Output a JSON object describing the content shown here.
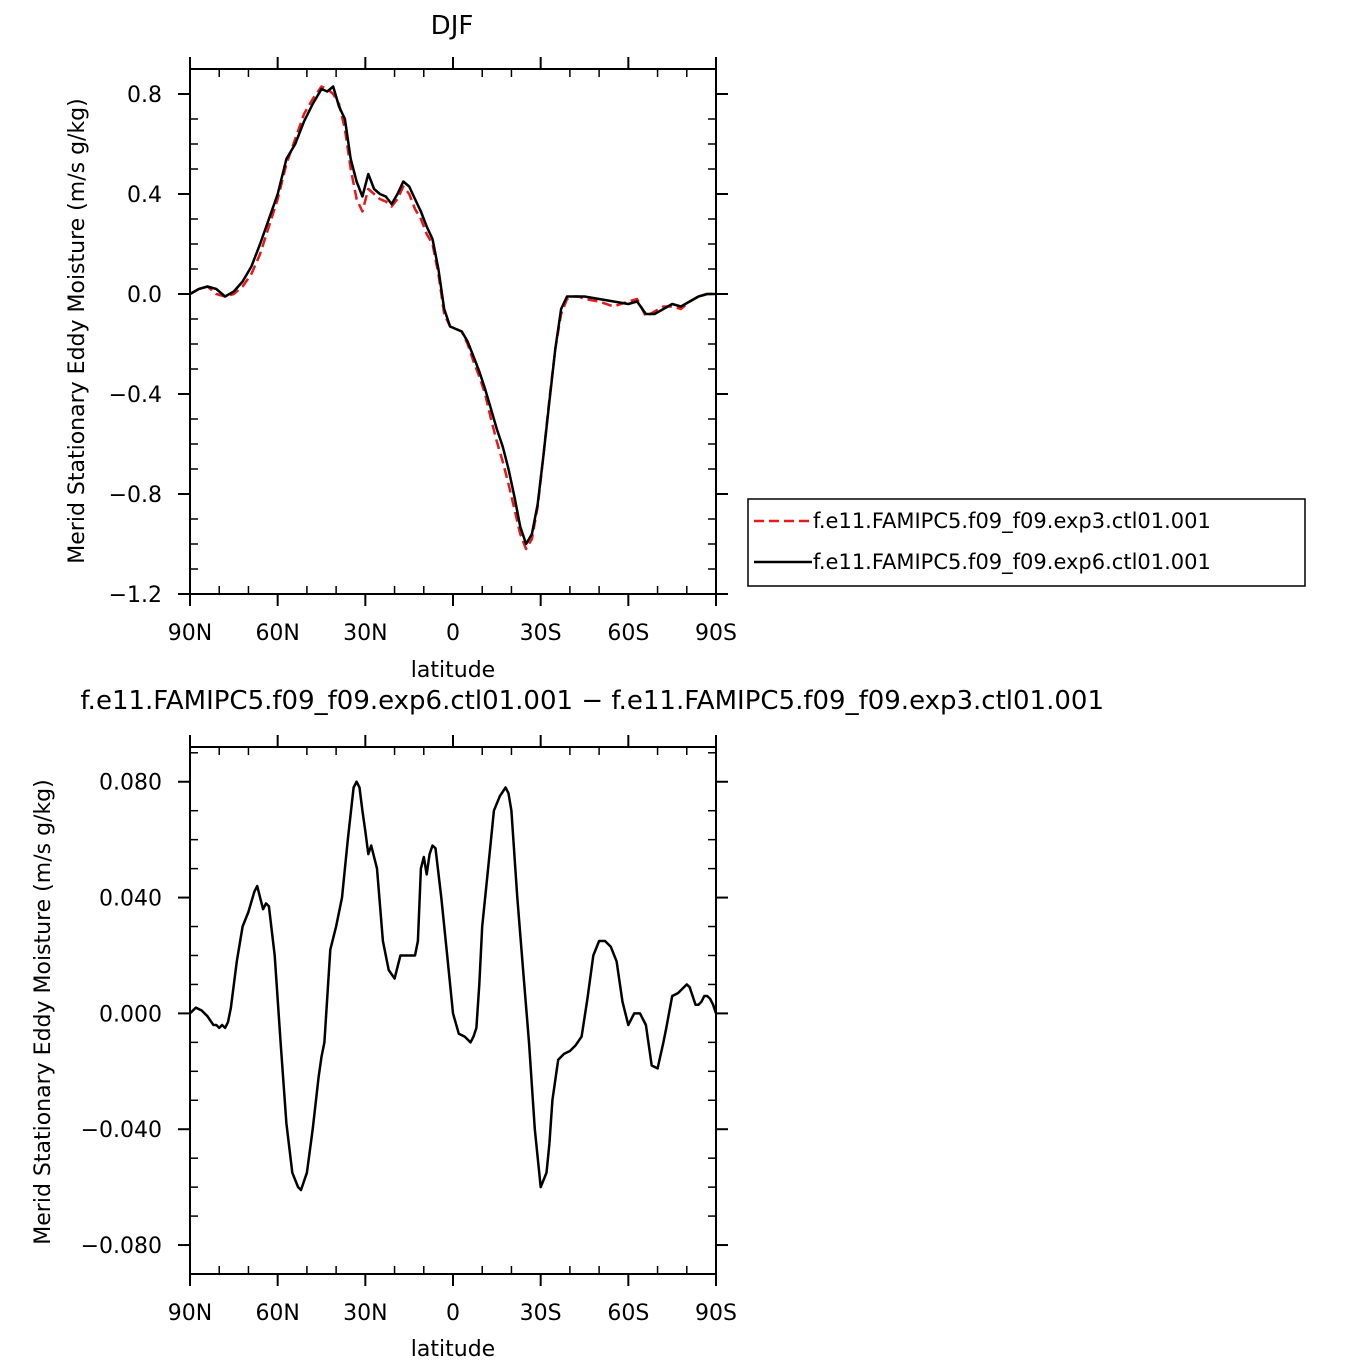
{
  "colors": {
    "exp3": "#e41a1c",
    "exp6": "#000000"
  },
  "chart_data": [
    {
      "type": "line",
      "title": "DJF",
      "xlabel": "latitude",
      "ylabel": "Merid Stationary Eddy Moisture (m/s g/kg)",
      "xlim": [
        -90,
        90
      ],
      "ylim": [
        -1.2,
        0.9
      ],
      "xticks": [
        -90,
        -60,
        -30,
        0,
        30,
        60,
        90
      ],
      "xtick_labels": [
        "90N",
        "60N",
        "30N",
        "0",
        "30S",
        "60S",
        "90S"
      ],
      "yticks": [
        -1.2,
        -0.8,
        -0.4,
        0.0,
        0.4,
        0.8
      ],
      "ytick_labels": [
        "−1.2",
        "−0.8",
        "−0.4",
        "0.0",
        "0.4",
        "0.8"
      ],
      "legend_position": "right",
      "series": [
        {
          "name": "f.e11.FAMIPC5.f09_f09.exp3.ctl01.001",
          "style": "dashed",
          "color": "#e41a1c",
          "x": [
            -90,
            -87,
            -84,
            -81,
            -78,
            -75,
            -72,
            -69,
            -66,
            -63,
            -60,
            -57,
            -54,
            -51,
            -48,
            -45,
            -43,
            -41,
            -39,
            -37,
            -35,
            -33,
            -31,
            -29,
            -27,
            -25,
            -23,
            -21,
            -19,
            -17,
            -15,
            -13,
            -11,
            -9,
            -7,
            -5,
            -3,
            -1,
            1,
            3,
            5,
            7,
            9,
            11,
            13,
            15,
            17,
            19,
            21,
            23,
            25,
            27,
            29,
            31,
            33,
            35,
            37,
            39,
            41,
            43,
            45,
            50,
            55,
            60,
            63,
            66,
            69,
            72,
            75,
            78,
            81,
            84,
            87,
            90
          ],
          "y": [
            0.0,
            0.02,
            0.03,
            0.0,
            -0.01,
            0.0,
            0.03,
            0.08,
            0.16,
            0.27,
            0.38,
            0.52,
            0.62,
            0.72,
            0.78,
            0.83,
            0.82,
            0.8,
            0.76,
            0.66,
            0.5,
            0.38,
            0.33,
            0.42,
            0.4,
            0.38,
            0.37,
            0.35,
            0.38,
            0.43,
            0.4,
            0.34,
            0.3,
            0.24,
            0.2,
            0.08,
            -0.08,
            -0.13,
            -0.14,
            -0.15,
            -0.2,
            -0.27,
            -0.33,
            -0.4,
            -0.5,
            -0.59,
            -0.67,
            -0.76,
            -0.86,
            -0.96,
            -1.02,
            -0.98,
            -0.85,
            -0.64,
            -0.42,
            -0.22,
            -0.08,
            -0.02,
            -0.01,
            -0.01,
            -0.02,
            -0.03,
            -0.05,
            -0.03,
            -0.02,
            -0.09,
            -0.07,
            -0.05,
            -0.05,
            -0.06,
            -0.03,
            -0.01,
            0.0,
            0.0
          ]
        },
        {
          "name": "f.e11.FAMIPC5.f09_f09.exp6.ctl01.001",
          "style": "solid",
          "color": "#000000",
          "x": [
            -90,
            -87,
            -84,
            -81,
            -78,
            -75,
            -72,
            -69,
            -66,
            -63,
            -60,
            -57,
            -54,
            -51,
            -48,
            -45,
            -43,
            -41,
            -39,
            -37,
            -35,
            -33,
            -31,
            -29,
            -27,
            -25,
            -23,
            -21,
            -19,
            -17,
            -15,
            -13,
            -11,
            -9,
            -7,
            -5,
            -3,
            -1,
            1,
            3,
            5,
            7,
            9,
            11,
            13,
            15,
            17,
            19,
            21,
            23,
            25,
            27,
            29,
            31,
            33,
            35,
            37,
            39,
            41,
            43,
            45,
            50,
            55,
            60,
            63,
            66,
            69,
            72,
            75,
            78,
            81,
            84,
            87,
            90
          ],
          "y": [
            0.0,
            0.02,
            0.03,
            0.02,
            -0.01,
            0.01,
            0.05,
            0.11,
            0.2,
            0.3,
            0.4,
            0.54,
            0.6,
            0.69,
            0.76,
            0.82,
            0.81,
            0.83,
            0.75,
            0.7,
            0.54,
            0.45,
            0.39,
            0.48,
            0.42,
            0.4,
            0.39,
            0.36,
            0.4,
            0.45,
            0.43,
            0.38,
            0.33,
            0.27,
            0.22,
            0.1,
            -0.06,
            -0.13,
            -0.14,
            -0.15,
            -0.19,
            -0.25,
            -0.31,
            -0.38,
            -0.46,
            -0.54,
            -0.61,
            -0.7,
            -0.81,
            -0.93,
            -1.0,
            -0.96,
            -0.84,
            -0.64,
            -0.43,
            -0.22,
            -0.06,
            -0.01,
            -0.01,
            -0.01,
            -0.01,
            -0.02,
            -0.03,
            -0.04,
            -0.03,
            -0.08,
            -0.08,
            -0.06,
            -0.04,
            -0.05,
            -0.03,
            -0.01,
            0.0,
            0.0
          ]
        }
      ]
    },
    {
      "type": "line",
      "title": "f.e11.FAMIPC5.f09_f09.exp6.ctl01.001 − f.e11.FAMIPC5.f09_f09.exp3.ctl01.001",
      "xlabel": "latitude",
      "ylabel": "Merid Stationary Eddy Moisture (m/s g/kg)",
      "xlim": [
        -90,
        90
      ],
      "ylim": [
        -0.09,
        0.092
      ],
      "xticks": [
        -90,
        -60,
        -30,
        0,
        30,
        60,
        90
      ],
      "xtick_labels": [
        "90N",
        "60N",
        "30N",
        "0",
        "30S",
        "60S",
        "90S"
      ],
      "yticks": [
        -0.08,
        -0.04,
        0.0,
        0.04,
        0.08
      ],
      "ytick_labels": [
        "−0.080",
        "−0.040",
        "0.000",
        "0.040",
        "0.080"
      ],
      "series": [
        {
          "style": "solid",
          "color": "#000000",
          "x": [
            -90,
            -88,
            -86,
            -84,
            -82,
            -81,
            -80,
            -79,
            -78,
            -77,
            -76,
            -74,
            -72,
            -70,
            -68,
            -67,
            -66,
            -65,
            -64,
            -63,
            -61,
            -59,
            -57,
            -55,
            -53,
            -52,
            -50,
            -48,
            -46,
            -45,
            -44,
            -42,
            -40,
            -38,
            -36,
            -34,
            -33,
            -32,
            -31,
            -30,
            -29,
            -28,
            -26,
            -24,
            -22,
            -20,
            -18,
            -16,
            -15,
            -14,
            -13,
            -12,
            -11,
            -10,
            -9,
            -8,
            -7,
            -6,
            -4,
            -2,
            0,
            2,
            4,
            6,
            7,
            8,
            9,
            10,
            12,
            14,
            16,
            18,
            19,
            20,
            22,
            24,
            26,
            28,
            30,
            32,
            33,
            34,
            36,
            38,
            40,
            42,
            44,
            46,
            48,
            50,
            52,
            54,
            56,
            58,
            60,
            62,
            64,
            66,
            68,
            70,
            72,
            73,
            75,
            77,
            78,
            80,
            81,
            82,
            83,
            84,
            85,
            86,
            87,
            88,
            89,
            90
          ],
          "y": [
            0.0,
            0.002,
            0.001,
            -0.001,
            -0.004,
            -0.004,
            -0.005,
            -0.004,
            -0.005,
            -0.003,
            0.002,
            0.018,
            0.03,
            0.035,
            0.042,
            0.044,
            0.04,
            0.036,
            0.038,
            0.037,
            0.02,
            -0.01,
            -0.038,
            -0.055,
            -0.06,
            -0.061,
            -0.055,
            -0.04,
            -0.022,
            -0.015,
            -0.01,
            0.022,
            0.03,
            0.04,
            0.06,
            0.078,
            0.08,
            0.078,
            0.07,
            0.063,
            0.055,
            0.058,
            0.05,
            0.025,
            0.015,
            0.012,
            0.02,
            0.02,
            0.02,
            0.02,
            0.02,
            0.025,
            0.05,
            0.054,
            0.048,
            0.055,
            0.058,
            0.057,
            0.04,
            0.02,
            0.0,
            -0.007,
            -0.008,
            -0.01,
            -0.008,
            -0.005,
            0.01,
            0.03,
            0.05,
            0.07,
            0.075,
            0.078,
            0.076,
            0.07,
            0.04,
            0.015,
            -0.01,
            -0.04,
            -0.06,
            -0.055,
            -0.045,
            -0.03,
            -0.016,
            -0.014,
            -0.013,
            -0.011,
            -0.008,
            0.005,
            0.02,
            0.025,
            0.025,
            0.023,
            0.018,
            0.004,
            -0.004,
            0.0,
            0.0,
            -0.004,
            -0.018,
            -0.019,
            -0.01,
            -0.005,
            0.006,
            0.007,
            0.008,
            0.01,
            0.009,
            0.006,
            0.003,
            0.003,
            0.004,
            0.006,
            0.006,
            0.005,
            0.003,
            0.0
          ]
        }
      ]
    }
  ]
}
